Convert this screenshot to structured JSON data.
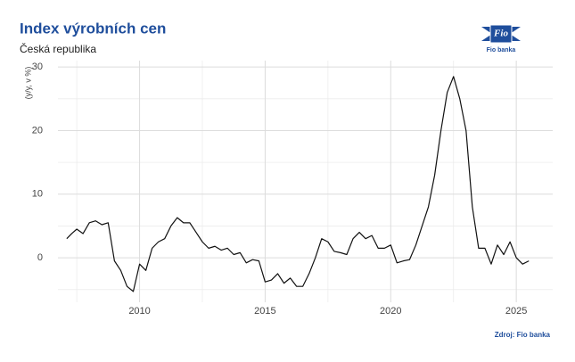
{
  "chart_data": {
    "type": "line",
    "title": "Index výrobních cen",
    "subtitle": "Česká republika",
    "y_label": "(y/y, v %)",
    "source": "Zdroj: Fio banka",
    "logo_mark": "Fio",
    "logo_text": "Fio banka",
    "x": [
      2007.1,
      2007.3,
      2007.5,
      2007.75,
      2008.0,
      2008.25,
      2008.5,
      2008.75,
      2009.0,
      2009.25,
      2009.5,
      2009.75,
      2010.0,
      2010.25,
      2010.5,
      2010.75,
      2011.0,
      2011.25,
      2011.5,
      2011.75,
      2012.0,
      2012.25,
      2012.5,
      2012.75,
      2013.0,
      2013.25,
      2013.5,
      2013.75,
      2014.0,
      2014.25,
      2014.5,
      2014.75,
      2015.0,
      2015.25,
      2015.5,
      2015.75,
      2016.0,
      2016.25,
      2016.5,
      2016.75,
      2017.0,
      2017.25,
      2017.5,
      2017.75,
      2018.0,
      2018.25,
      2018.5,
      2018.75,
      2019.0,
      2019.25,
      2019.5,
      2019.75,
      2020.0,
      2020.25,
      2020.5,
      2020.75,
      2021.0,
      2021.25,
      2021.5,
      2021.75,
      2022.0,
      2022.25,
      2022.5,
      2022.75,
      2023.0,
      2023.25,
      2023.5,
      2023.75,
      2024.0,
      2024.25,
      2024.5,
      2024.75,
      2025.0,
      2025.25,
      2025.5
    ],
    "series": [
      {
        "color": "#111111",
        "values": [
          3.0,
          3.8,
          4.5,
          3.8,
          5.5,
          5.8,
          5.2,
          5.5,
          -0.5,
          -2,
          -4.5,
          -5.3,
          -1,
          -2,
          1.5,
          2.5,
          3,
          5,
          6.3,
          5.5,
          5.5,
          4,
          2.5,
          1.5,
          1.8,
          1.2,
          1.5,
          0.5,
          0.8,
          -0.8,
          -0.3,
          -0.5,
          -3.8,
          -3.5,
          -2.5,
          -4,
          -3.2,
          -4.5,
          -4.5,
          -2.5,
          0,
          3,
          2.5,
          1,
          0.8,
          0.5,
          3,
          4,
          3,
          3.5,
          1.5,
          1.5,
          2,
          -0.8,
          -0.5,
          -0.3,
          2,
          5,
          8,
          13,
          20,
          26,
          28.5,
          25,
          20,
          8,
          1.5,
          1.5,
          -1,
          2,
          0.5,
          2.5,
          0,
          -1,
          -0.5
        ]
      }
    ],
    "xlim": [
      2006.75,
      2026.45
    ],
    "xticks": [
      2010,
      2015,
      2020,
      2025
    ],
    "xminorticks": [
      2007.5,
      2012.5,
      2017.5,
      2022.5
    ],
    "ylim": [
      -7,
      31
    ],
    "yticks": [
      0,
      10,
      20,
      30
    ],
    "yminorticks": [
      -5,
      5,
      15,
      25
    ],
    "grid": true
  }
}
